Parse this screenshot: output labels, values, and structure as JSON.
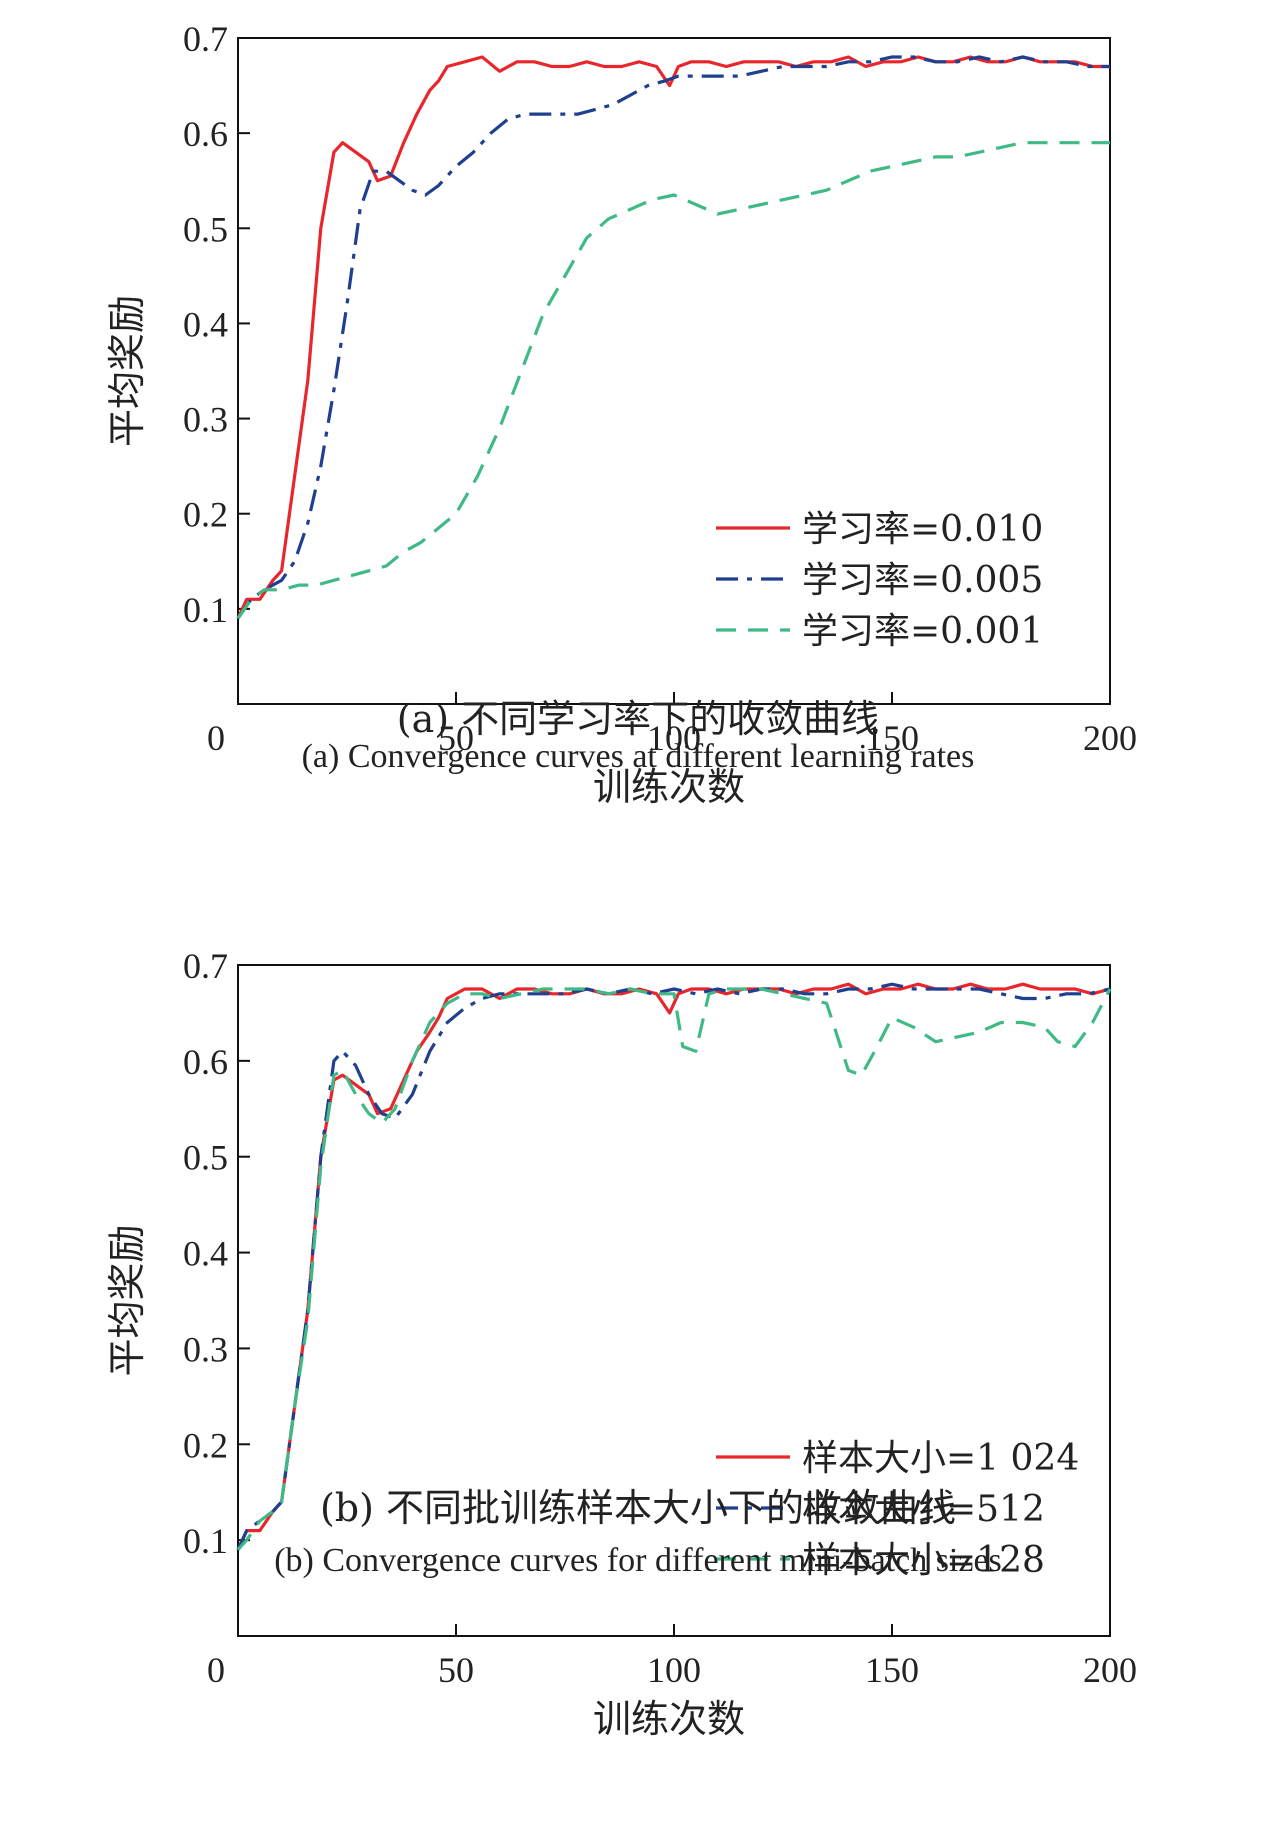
{
  "chart_data": [
    {
      "type": "line",
      "title": "",
      "caption_zh": "(a) 不同学习率下的收敛曲线",
      "caption_en": "(a) Convergence curves at different learning rates",
      "xlabel": "训练次数",
      "ylabel": "平均奖励",
      "xlim": [
        0,
        200
      ],
      "ylim": [
        0,
        0.7
      ],
      "xticks": [
        "0",
        "50",
        "100",
        "150",
        "200"
      ],
      "yticks": [
        "0.1",
        "0.2",
        "0.3",
        "0.4",
        "0.5",
        "0.6",
        "0.7"
      ],
      "grid": false,
      "legend_position": "lower-right",
      "series": [
        {
          "name": "学习率=0.010",
          "color": "#e8262b",
          "dash": "solid",
          "x": [
            0,
            2,
            5,
            8,
            10,
            13,
            16,
            19,
            22,
            24,
            27,
            30,
            32,
            35,
            38,
            41,
            44,
            46,
            48,
            52,
            56,
            60,
            64,
            68,
            72,
            76,
            80,
            84,
            88,
            92,
            96,
            99,
            101,
            104,
            108,
            112,
            116,
            120,
            124,
            128,
            132,
            136,
            140,
            144,
            148,
            152,
            156,
            160,
            164,
            168,
            172,
            176,
            180,
            184,
            188,
            192,
            196,
            200
          ],
          "y": [
            0.09,
            0.11,
            0.11,
            0.13,
            0.14,
            0.24,
            0.34,
            0.5,
            0.58,
            0.59,
            0.58,
            0.57,
            0.55,
            0.555,
            0.59,
            0.62,
            0.645,
            0.655,
            0.67,
            0.675,
            0.68,
            0.665,
            0.675,
            0.675,
            0.67,
            0.67,
            0.675,
            0.67,
            0.67,
            0.675,
            0.67,
            0.65,
            0.67,
            0.675,
            0.675,
            0.67,
            0.675,
            0.675,
            0.675,
            0.67,
            0.675,
            0.675,
            0.68,
            0.67,
            0.675,
            0.675,
            0.68,
            0.675,
            0.675,
            0.68,
            0.675,
            0.675,
            0.68,
            0.675,
            0.675,
            0.675,
            0.67,
            0.67
          ]
        },
        {
          "name": "学习率=0.005",
          "color": "#1f3f8f",
          "dash": "dashdot",
          "x": [
            0,
            3,
            6,
            10,
            13,
            16,
            19,
            22,
            25,
            28,
            31,
            34,
            37,
            40,
            43,
            46,
            50,
            54,
            58,
            62,
            66,
            70,
            74,
            78,
            82,
            86,
            90,
            94,
            98,
            101,
            105,
            110,
            115,
            120,
            125,
            130,
            135,
            140,
            145,
            150,
            155,
            160,
            165,
            170,
            175,
            180,
            185,
            190,
            195,
            200
          ],
          "y": [
            0.09,
            0.11,
            0.12,
            0.13,
            0.15,
            0.19,
            0.25,
            0.33,
            0.42,
            0.52,
            0.56,
            0.56,
            0.55,
            0.54,
            0.535,
            0.545,
            0.565,
            0.58,
            0.6,
            0.615,
            0.62,
            0.62,
            0.62,
            0.62,
            0.625,
            0.63,
            0.64,
            0.65,
            0.655,
            0.66,
            0.66,
            0.66,
            0.66,
            0.665,
            0.67,
            0.67,
            0.67,
            0.675,
            0.675,
            0.68,
            0.68,
            0.675,
            0.675,
            0.68,
            0.675,
            0.68,
            0.675,
            0.675,
            0.67,
            0.67
          ]
        },
        {
          "name": "学习率=0.001",
          "color": "#3fba86",
          "dash": "dashed",
          "x": [
            0,
            3,
            6,
            10,
            14,
            18,
            22,
            26,
            30,
            34,
            38,
            42,
            46,
            50,
            55,
            60,
            65,
            70,
            75,
            80,
            85,
            90,
            95,
            100,
            105,
            110,
            115,
            120,
            125,
            130,
            135,
            140,
            145,
            150,
            155,
            160,
            165,
            170,
            175,
            180,
            185,
            190,
            195,
            200
          ],
          "y": [
            0.09,
            0.11,
            0.12,
            0.12,
            0.125,
            0.125,
            0.13,
            0.135,
            0.14,
            0.145,
            0.16,
            0.17,
            0.185,
            0.2,
            0.24,
            0.29,
            0.35,
            0.41,
            0.45,
            0.49,
            0.51,
            0.52,
            0.53,
            0.535,
            0.525,
            0.515,
            0.52,
            0.525,
            0.53,
            0.535,
            0.54,
            0.55,
            0.56,
            0.565,
            0.57,
            0.575,
            0.575,
            0.58,
            0.585,
            0.59,
            0.59,
            0.59,
            0.59,
            0.59
          ]
        }
      ]
    },
    {
      "type": "line",
      "title": "",
      "caption_zh": "(b) 不同批训练样本大小下的收敛曲线",
      "caption_en": "(b) Convergence curves for different mini-batch sizes",
      "xlabel": "训练次数",
      "ylabel": "平均奖励",
      "xlim": [
        0,
        200
      ],
      "ylim": [
        0,
        0.7
      ],
      "xticks": [
        "0",
        "50",
        "100",
        "150",
        "200"
      ],
      "yticks": [
        "0.1",
        "0.2",
        "0.3",
        "0.4",
        "0.5",
        "0.6",
        "0.7"
      ],
      "grid": false,
      "legend_position": "lower-right",
      "series": [
        {
          "name": "样本大小=1 024",
          "color": "#e8262b",
          "dash": "solid",
          "x": [
            0,
            2,
            5,
            8,
            10,
            13,
            16,
            19,
            22,
            24,
            27,
            30,
            32,
            35,
            38,
            41,
            44,
            46,
            48,
            52,
            56,
            60,
            64,
            68,
            72,
            76,
            80,
            84,
            88,
            92,
            96,
            99,
            101,
            104,
            108,
            112,
            116,
            120,
            124,
            128,
            132,
            136,
            140,
            144,
            148,
            152,
            156,
            160,
            164,
            168,
            172,
            176,
            180,
            184,
            188,
            192,
            196,
            200
          ],
          "y": [
            0.09,
            0.11,
            0.11,
            0.13,
            0.14,
            0.24,
            0.34,
            0.5,
            0.58,
            0.585,
            0.575,
            0.565,
            0.545,
            0.55,
            0.58,
            0.61,
            0.63,
            0.645,
            0.665,
            0.675,
            0.675,
            0.665,
            0.675,
            0.675,
            0.67,
            0.67,
            0.675,
            0.67,
            0.67,
            0.675,
            0.67,
            0.65,
            0.67,
            0.675,
            0.675,
            0.67,
            0.675,
            0.675,
            0.675,
            0.67,
            0.675,
            0.675,
            0.68,
            0.67,
            0.675,
            0.675,
            0.68,
            0.675,
            0.675,
            0.68,
            0.675,
            0.675,
            0.68,
            0.675,
            0.675,
            0.675,
            0.67,
            0.675
          ]
        },
        {
          "name": "样本大小=512",
          "color": "#1f3f8f",
          "dash": "dashdot",
          "x": [
            0,
            2,
            5,
            8,
            10,
            13,
            16,
            19,
            22,
            24,
            27,
            30,
            33,
            36,
            40,
            44,
            48,
            52,
            56,
            60,
            65,
            70,
            75,
            80,
            85,
            90,
            95,
            100,
            105,
            110,
            115,
            120,
            125,
            130,
            135,
            140,
            145,
            150,
            155,
            160,
            165,
            170,
            175,
            180,
            185,
            190,
            195,
            200
          ],
          "y": [
            0.09,
            0.11,
            0.12,
            0.13,
            0.14,
            0.24,
            0.34,
            0.5,
            0.6,
            0.61,
            0.595,
            0.565,
            0.545,
            0.54,
            0.565,
            0.61,
            0.64,
            0.655,
            0.665,
            0.67,
            0.67,
            0.67,
            0.67,
            0.675,
            0.67,
            0.675,
            0.67,
            0.675,
            0.67,
            0.675,
            0.67,
            0.675,
            0.675,
            0.67,
            0.67,
            0.675,
            0.675,
            0.68,
            0.675,
            0.675,
            0.675,
            0.675,
            0.67,
            0.665,
            0.665,
            0.67,
            0.67,
            0.675
          ]
        },
        {
          "name": "样本大小=128",
          "color": "#3fba86",
          "dash": "dashed",
          "x": [
            0,
            2,
            5,
            8,
            10,
            13,
            16,
            19,
            22,
            24,
            27,
            30,
            33,
            36,
            40,
            44,
            48,
            52,
            56,
            60,
            65,
            70,
            75,
            80,
            85,
            90,
            95,
            100,
            102,
            105,
            108,
            112,
            116,
            120,
            125,
            130,
            135,
            140,
            143,
            146,
            150,
            155,
            160,
            165,
            170,
            175,
            180,
            185,
            188,
            192,
            196,
            200
          ],
          "y": [
            0.09,
            0.1,
            0.12,
            0.13,
            0.14,
            0.24,
            0.33,
            0.49,
            0.585,
            0.59,
            0.565,
            0.545,
            0.535,
            0.55,
            0.6,
            0.64,
            0.66,
            0.67,
            0.67,
            0.665,
            0.67,
            0.675,
            0.675,
            0.675,
            0.67,
            0.675,
            0.67,
            0.67,
            0.615,
            0.61,
            0.67,
            0.675,
            0.675,
            0.675,
            0.67,
            0.665,
            0.66,
            0.59,
            0.585,
            0.61,
            0.645,
            0.635,
            0.62,
            0.625,
            0.63,
            0.64,
            0.64,
            0.635,
            0.62,
            0.615,
            0.64,
            0.675
          ]
        }
      ]
    }
  ]
}
